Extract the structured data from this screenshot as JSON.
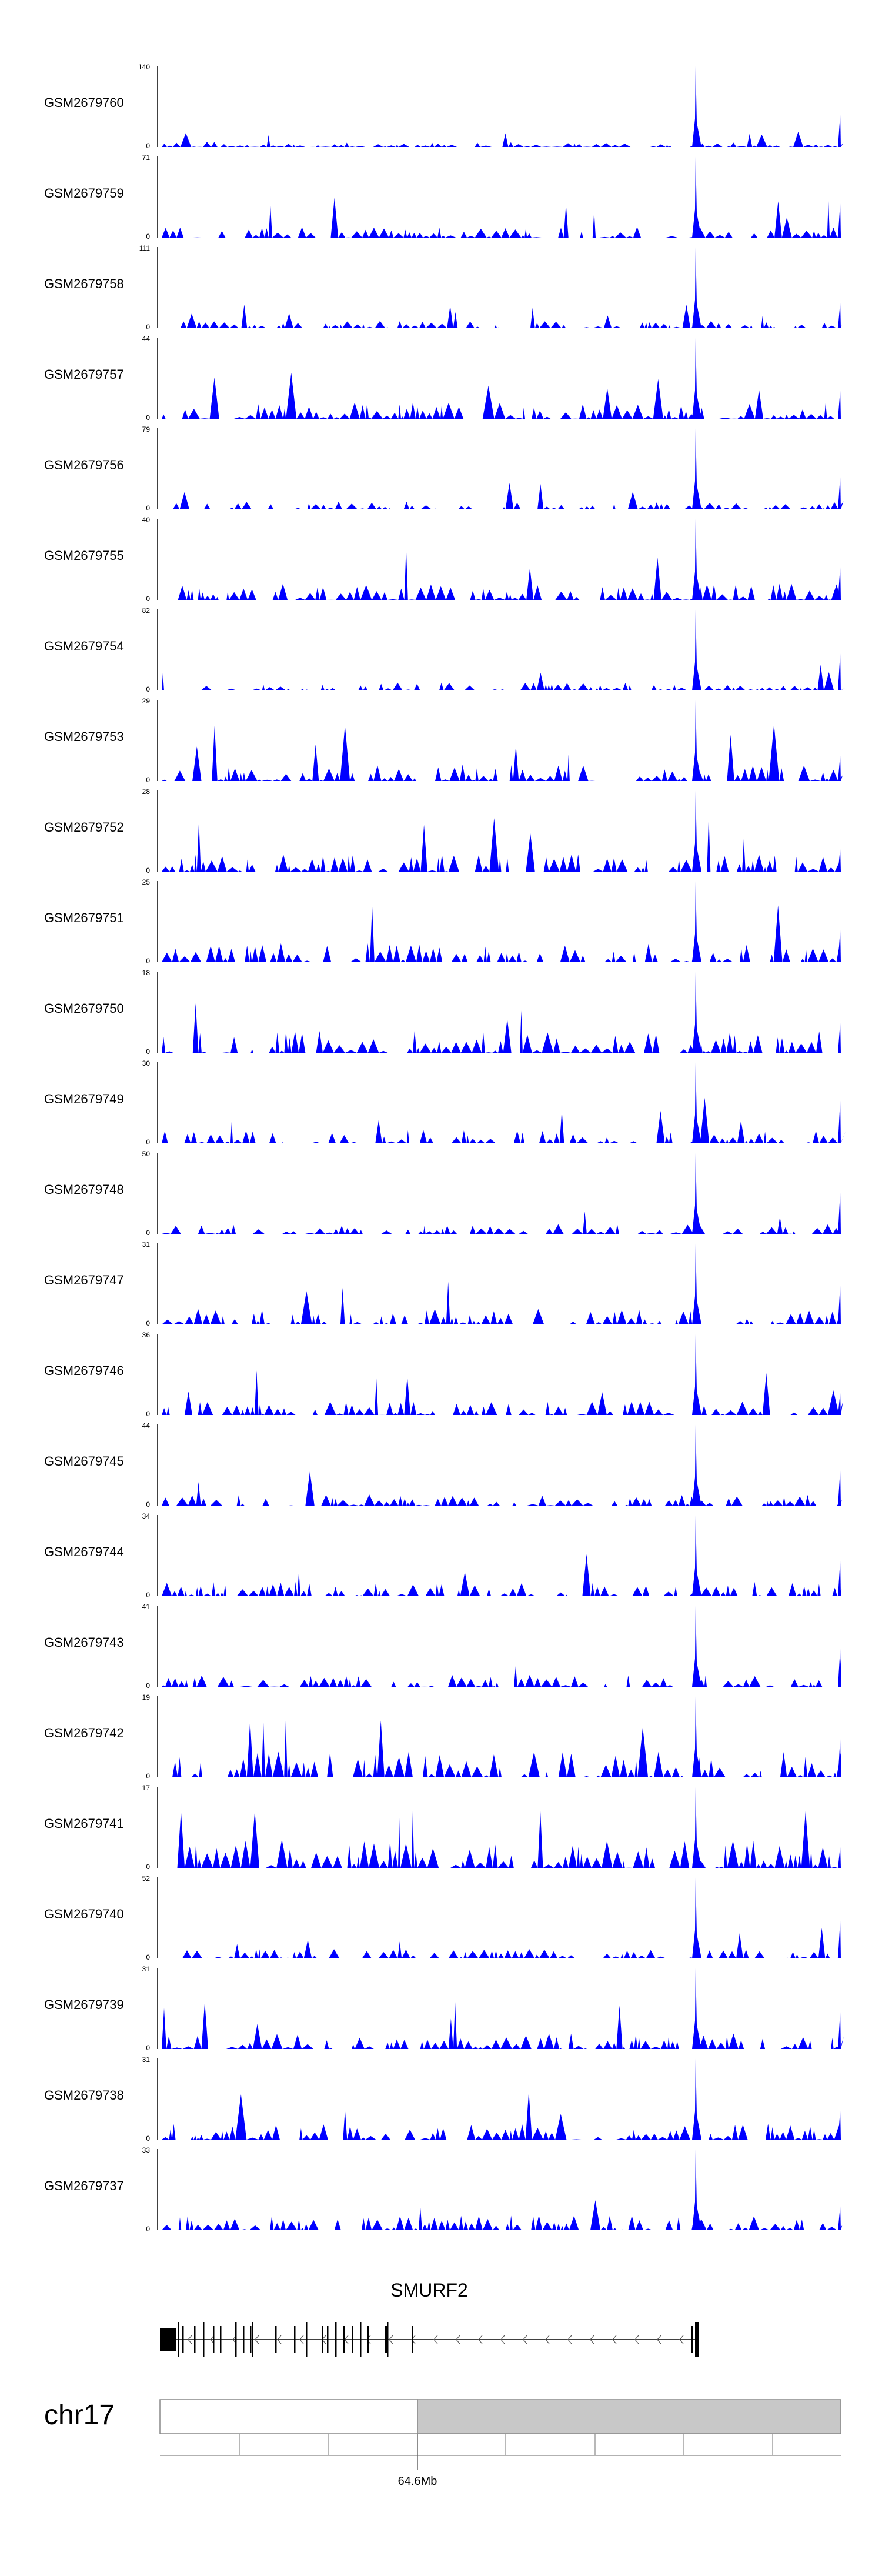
{
  "chart_data": {
    "type": "area",
    "colors": {
      "track_fill": "#0000ff",
      "ideogram_highlight": "#c8c8c8",
      "axis": "#000000"
    },
    "tracks": [
      {
        "name": "GSM2679760",
        "ymax": "140",
        "ymin": "0",
        "peak": 140,
        "base": 9
      },
      {
        "name": "GSM2679759",
        "ymax": "71",
        "ymin": "0",
        "peak": 71,
        "base": 10
      },
      {
        "name": "GSM2679758",
        "ymax": "111",
        "ymin": "0",
        "peak": 111,
        "base": 10
      },
      {
        "name": "GSM2679757",
        "ymax": "44",
        "ymin": "0",
        "peak": 44,
        "base": 9
      },
      {
        "name": "GSM2679756",
        "ymax": "79",
        "ymin": "0",
        "peak": 79,
        "base": 8
      },
      {
        "name": "GSM2679755",
        "ymax": "40",
        "ymin": "0",
        "peak": 40,
        "base": 8
      },
      {
        "name": "GSM2679754",
        "ymax": "82",
        "ymin": "0",
        "peak": 82,
        "base": 8
      },
      {
        "name": "GSM2679753",
        "ymax": "29",
        "ymin": "0",
        "peak": 29,
        "base": 6
      },
      {
        "name": "GSM2679752",
        "ymax": "28",
        "ymin": "0",
        "peak": 28,
        "base": 6
      },
      {
        "name": "GSM2679751",
        "ymax": "25",
        "ymin": "0",
        "peak": 25,
        "base": 6
      },
      {
        "name": "GSM2679750",
        "ymax": "18",
        "ymin": "0",
        "peak": 18,
        "base": 5
      },
      {
        "name": "GSM2679749",
        "ymax": "30",
        "ymin": "0",
        "peak": 30,
        "base": 5
      },
      {
        "name": "GSM2679748",
        "ymax": "50",
        "ymin": "0",
        "peak": 50,
        "base": 6
      },
      {
        "name": "GSM2679747",
        "ymax": "31",
        "ymin": "0",
        "peak": 31,
        "base": 6
      },
      {
        "name": "GSM2679746",
        "ymax": "36",
        "ymin": "0",
        "peak": 36,
        "base": 6
      },
      {
        "name": "GSM2679745",
        "ymax": "44",
        "ymin": "0",
        "peak": 44,
        "base": 6
      },
      {
        "name": "GSM2679744",
        "ymax": "34",
        "ymin": "0",
        "peak": 34,
        "base": 6
      },
      {
        "name": "GSM2679743",
        "ymax": "41",
        "ymin": "0",
        "peak": 41,
        "base": 6
      },
      {
        "name": "GSM2679742",
        "ymax": "19",
        "ymin": "0",
        "peak": 19,
        "base": 6
      },
      {
        "name": "GSM2679741",
        "ymax": "17",
        "ymin": "0",
        "peak": 17,
        "base": 6
      },
      {
        "name": "GSM2679740",
        "ymax": "52",
        "ymin": "0",
        "peak": 52,
        "base": 6
      },
      {
        "name": "GSM2679739",
        "ymax": "31",
        "ymin": "0",
        "peak": 31,
        "base": 6
      },
      {
        "name": "GSM2679738",
        "ymax": "31",
        "ymin": "0",
        "peak": 31,
        "base": 6
      },
      {
        "name": "GSM2679737",
        "ymax": "33",
        "ymin": "0",
        "peak": 33,
        "base": 6
      }
    ],
    "gene": {
      "name": "SMURF2",
      "strand": "-"
    },
    "chromosome": "chr17",
    "axis_tick_label": "64.6Mb",
    "grid": false
  }
}
